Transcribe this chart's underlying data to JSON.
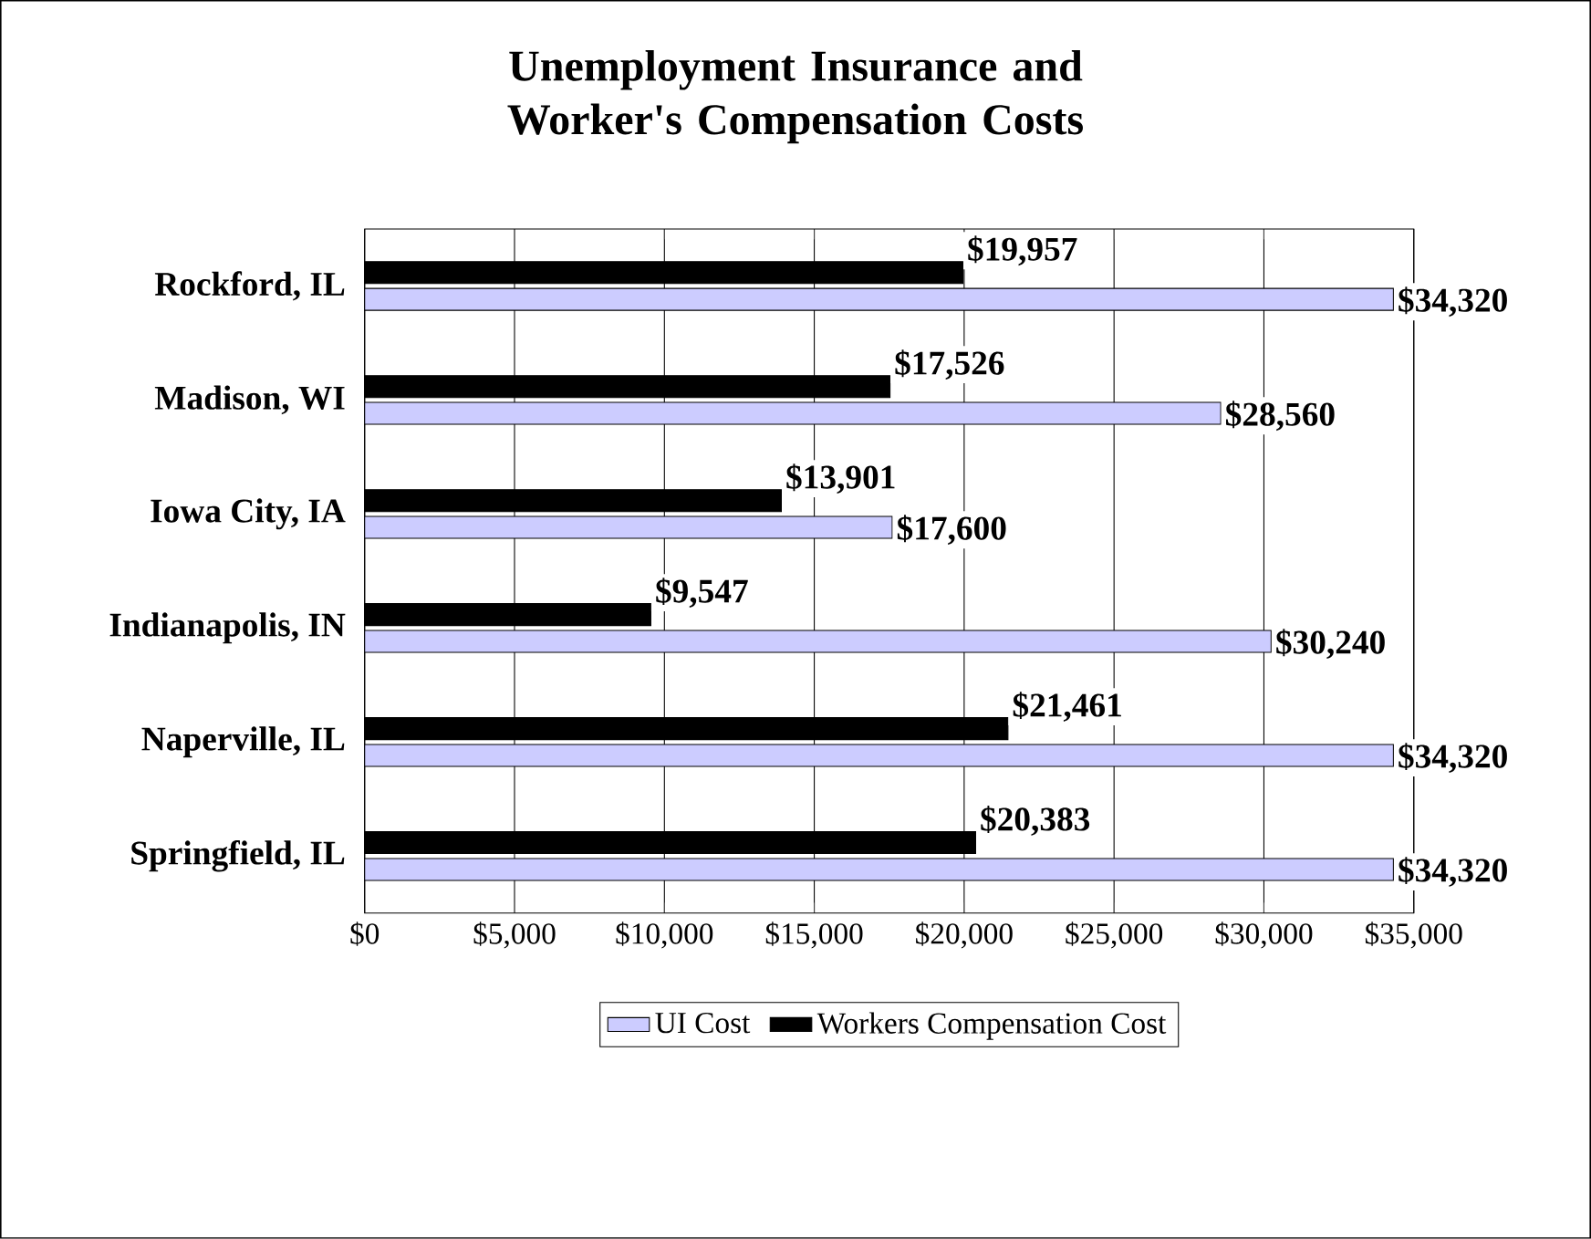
{
  "chart_data": {
    "type": "bar",
    "orientation": "horizontal",
    "title": "Unemployment Insurance and Worker's Compensation Costs",
    "categories": [
      "Rockford, IL",
      "Madison, WI",
      "Iowa City, IA",
      "Indianapolis, IN",
      "Naperville, IL",
      "Springfield, IL"
    ],
    "series": [
      {
        "name": "UI Cost",
        "color": "#ccccff",
        "values": [
          34320,
          28560,
          17600,
          30240,
          34320,
          34320
        ],
        "value_labels": [
          "$34,320",
          "$28,560",
          "$17,600",
          "$30,240",
          "$34,320",
          "$34,320"
        ]
      },
      {
        "name": "Workers Compensation Cost",
        "color": "#000000",
        "values": [
          19957,
          17526,
          13901,
          9547,
          21461,
          20383
        ],
        "value_labels": [
          "$19,957",
          "$17,526",
          "$13,901",
          "$9,547",
          "$21,461",
          "$20,383"
        ]
      }
    ],
    "xlim": [
      0,
      35000
    ],
    "xticks": [
      {
        "value": 0,
        "label": "$0"
      },
      {
        "value": 5000,
        "label": "$5,000"
      },
      {
        "value": 10000,
        "label": "$10,000"
      },
      {
        "value": 15000,
        "label": "$15,000"
      },
      {
        "value": 20000,
        "label": "$20,000"
      },
      {
        "value": 25000,
        "label": "$25,000"
      },
      {
        "value": 30000,
        "label": "$30,000"
      },
      {
        "value": 35000,
        "label": "$35,000"
      }
    ],
    "grid": "x",
    "legend": "bottom"
  }
}
